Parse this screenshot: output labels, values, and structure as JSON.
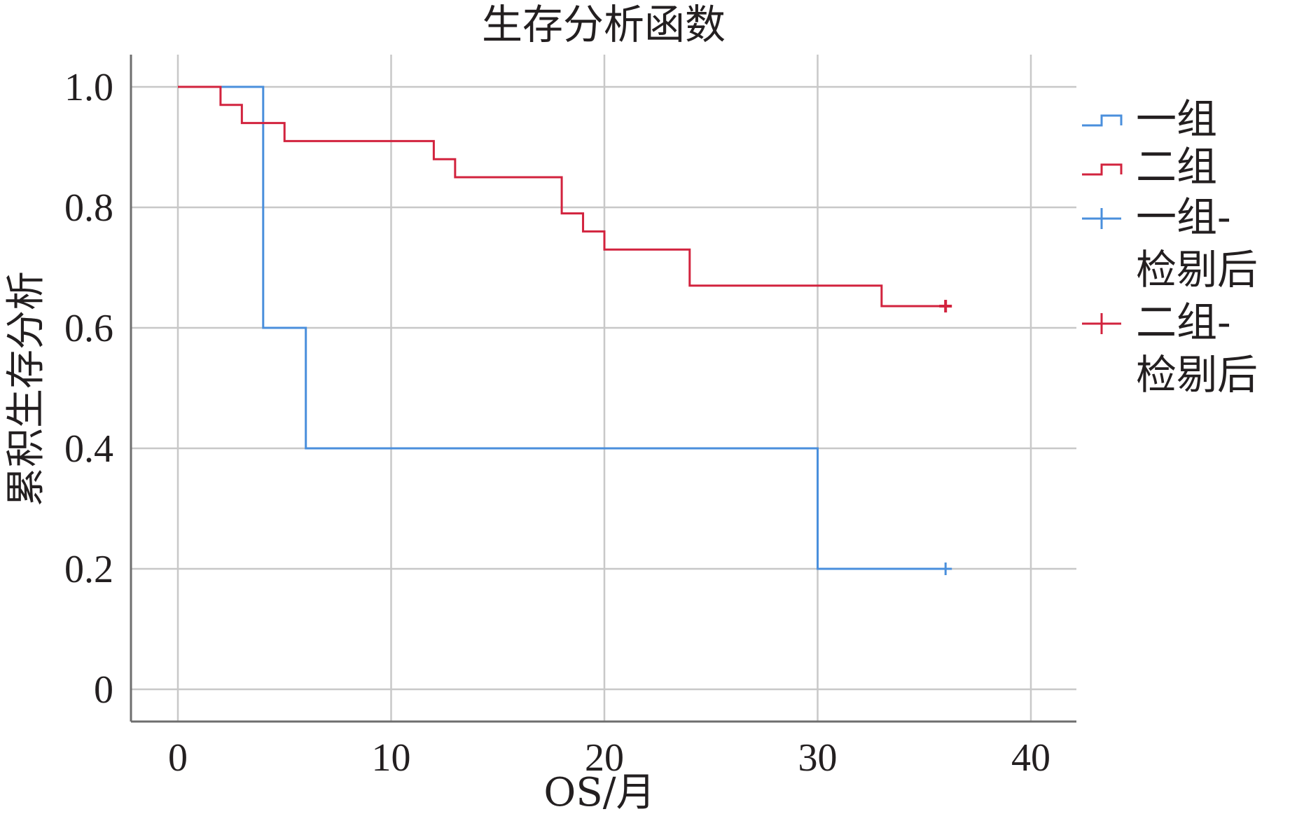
{
  "chart_data": {
    "type": "line",
    "title": "生存分析函数",
    "xlabel": "OS/月",
    "ylabel": "累积生存分析",
    "xlim": [
      -2.3,
      42.2
    ],
    "ylim": [
      -0.055,
      1.055
    ],
    "x_ticks": [
      0,
      10,
      20,
      30,
      40
    ],
    "x_tick_labels": [
      "0",
      "10",
      "20",
      "30",
      "40"
    ],
    "y_ticks": [
      0,
      0.2,
      0.4,
      0.6,
      0.8,
      1.0
    ],
    "y_tick_labels": [
      "0",
      "0.2",
      "0.4",
      "0.6",
      "0.8",
      "1.0"
    ],
    "grid": true,
    "legend_position": "right",
    "series": [
      {
        "name": "一组",
        "color": "#4a8fdc",
        "step": true,
        "x": [
          0,
          4,
          4,
          6,
          6,
          30,
          30,
          36
        ],
        "y": [
          1.0,
          1.0,
          0.6,
          0.6,
          0.4,
          0.4,
          0.2,
          0.2
        ],
        "censored": [
          {
            "x": 36,
            "y": 0.2
          }
        ]
      },
      {
        "name": "二组",
        "color": "#d2233e",
        "step": true,
        "x": [
          0,
          2,
          2,
          3,
          3,
          5,
          5,
          12,
          12,
          13,
          13,
          18,
          18,
          19,
          19,
          20,
          20,
          24,
          24,
          33,
          33,
          36
        ],
        "y": [
          1.0,
          1.0,
          0.97,
          0.97,
          0.94,
          0.94,
          0.91,
          0.91,
          0.88,
          0.88,
          0.85,
          0.85,
          0.79,
          0.79,
          0.76,
          0.76,
          0.73,
          0.73,
          0.67,
          0.67,
          0.636,
          0.636
        ],
        "censored": [
          {
            "x": 36,
            "y": 0.636
          }
        ]
      }
    ],
    "legend": [
      {
        "label": "一组",
        "symbol": "step",
        "color": "#4a8fdc"
      },
      {
        "label": "二组",
        "symbol": "step",
        "color": "#d2233e"
      },
      {
        "label": "一组-检剔后",
        "lines": [
          "一组-",
          "检剔后"
        ],
        "symbol": "plus",
        "color": "#4a8fdc"
      },
      {
        "label": "二组-检剔后",
        "lines": [
          "二组-",
          "检剔后"
        ],
        "symbol": "plus",
        "color": "#d2233e"
      }
    ]
  }
}
